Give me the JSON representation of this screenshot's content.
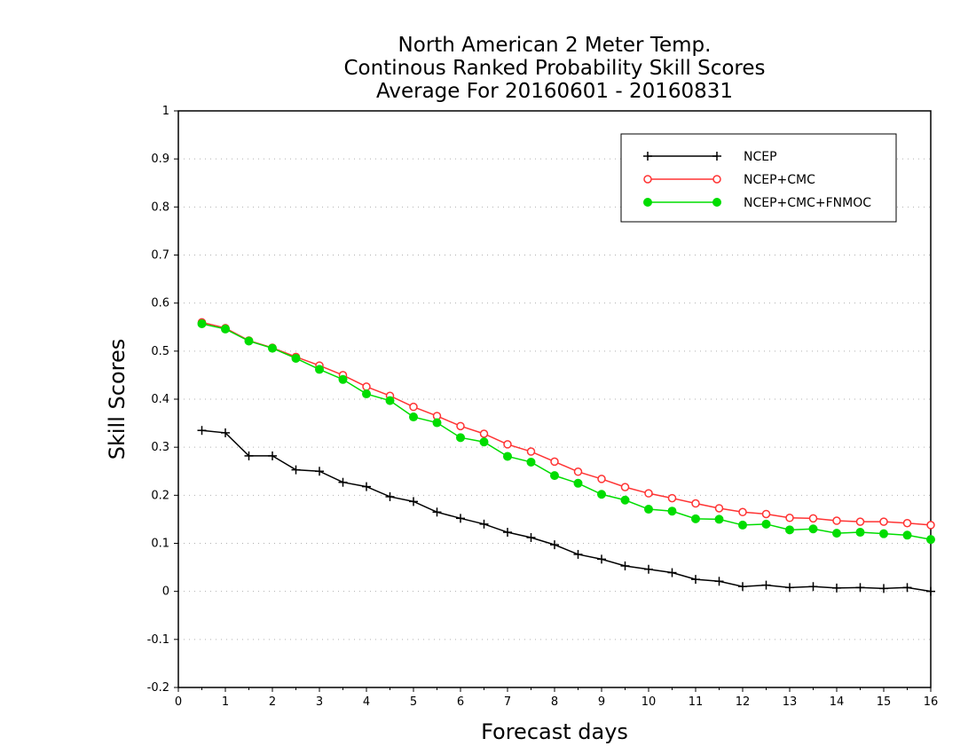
{
  "chart_data": {
    "type": "line",
    "title_lines": [
      "North American 2 Meter Temp.",
      "Continous Ranked Probability Skill Scores",
      "Average For 20160601 - 20160831"
    ],
    "xlabel": "Forecast days",
    "ylabel": "Skill Scores",
    "xlim": [
      0,
      16
    ],
    "ylim": [
      -0.2,
      1
    ],
    "xticks": [
      "0",
      "1",
      "2",
      "3",
      "4",
      "5",
      "6",
      "7",
      "8",
      "9",
      "10",
      "11",
      "12",
      "13",
      "14",
      "15",
      "16"
    ],
    "yticks": [
      "-0.2",
      "-0.1",
      "0",
      "0.1",
      "0.2",
      "0.3",
      "0.4",
      "0.5",
      "0.6",
      "0.7",
      "0.8",
      "0.9",
      "1"
    ],
    "grid": "horizontal dotted",
    "legend_position": "top-right",
    "x": [
      0.5,
      1,
      1.5,
      2,
      2.5,
      3,
      3.5,
      4,
      4.5,
      5,
      5.5,
      6,
      6.5,
      7,
      7.5,
      8,
      8.5,
      9,
      9.5,
      10,
      10.5,
      11,
      11.5,
      12,
      12.5,
      13,
      13.5,
      14,
      14.5,
      15,
      15.5,
      16
    ],
    "series": [
      {
        "name": "NCEP",
        "color": "#000000",
        "marker": "plus",
        "values": [
          0.335,
          0.33,
          0.282,
          0.282,
          0.253,
          0.25,
          0.227,
          0.218,
          0.197,
          0.187,
          0.165,
          0.152,
          0.14,
          0.123,
          0.112,
          0.097,
          0.077,
          0.067,
          0.053,
          0.046,
          0.039,
          0.025,
          0.021,
          0.01,
          0.013,
          0.008,
          0.01,
          0.007,
          0.008,
          0.006,
          0.008,
          0.0
        ]
      },
      {
        "name": "NCEP+CMC",
        "color": "#ff3333",
        "marker": "open-circle",
        "values": [
          0.56,
          0.548,
          0.522,
          0.507,
          0.488,
          0.47,
          0.45,
          0.426,
          0.407,
          0.384,
          0.365,
          0.344,
          0.328,
          0.306,
          0.291,
          0.27,
          0.249,
          0.234,
          0.217,
          0.204,
          0.194,
          0.183,
          0.173,
          0.165,
          0.161,
          0.153,
          0.152,
          0.147,
          0.145,
          0.145,
          0.142,
          0.138
        ]
      },
      {
        "name": "NCEP+CMC+FNMOC",
        "color": "#00dd00",
        "marker": "filled-circle",
        "values": [
          0.557,
          0.546,
          0.521,
          0.506,
          0.485,
          0.462,
          0.441,
          0.411,
          0.397,
          0.363,
          0.351,
          0.32,
          0.311,
          0.281,
          0.269,
          0.241,
          0.225,
          0.202,
          0.19,
          0.171,
          0.167,
          0.151,
          0.15,
          0.138,
          0.14,
          0.128,
          0.13,
          0.121,
          0.123,
          0.12,
          0.117,
          0.108
        ]
      }
    ]
  }
}
